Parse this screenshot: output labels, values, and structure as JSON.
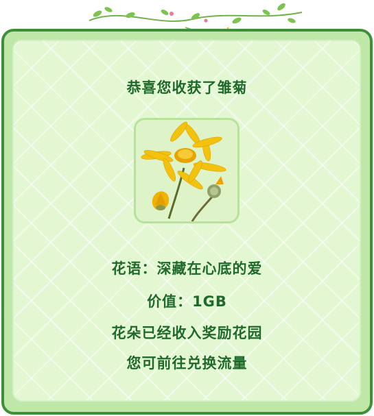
{
  "reward": {
    "title": "恭喜您收获了雏菊",
    "flower_language_label": "花语：",
    "flower_language": "深藏在心底的爱",
    "value_label": "价值：",
    "value": "1GB",
    "message_collected": "花朵已经收入奖励花园",
    "message_redeem": "您可前往兑换流量"
  },
  "colors": {
    "border_green": "#3f8f3a",
    "panel_green": "#bfe7a7",
    "inner_green": "#e3f7d3",
    "text_green": "#1f6a2a",
    "petal_yellow": "#f3c20f"
  },
  "icons": {
    "decoration": "flower-vine",
    "flower": "daisy-flower"
  }
}
